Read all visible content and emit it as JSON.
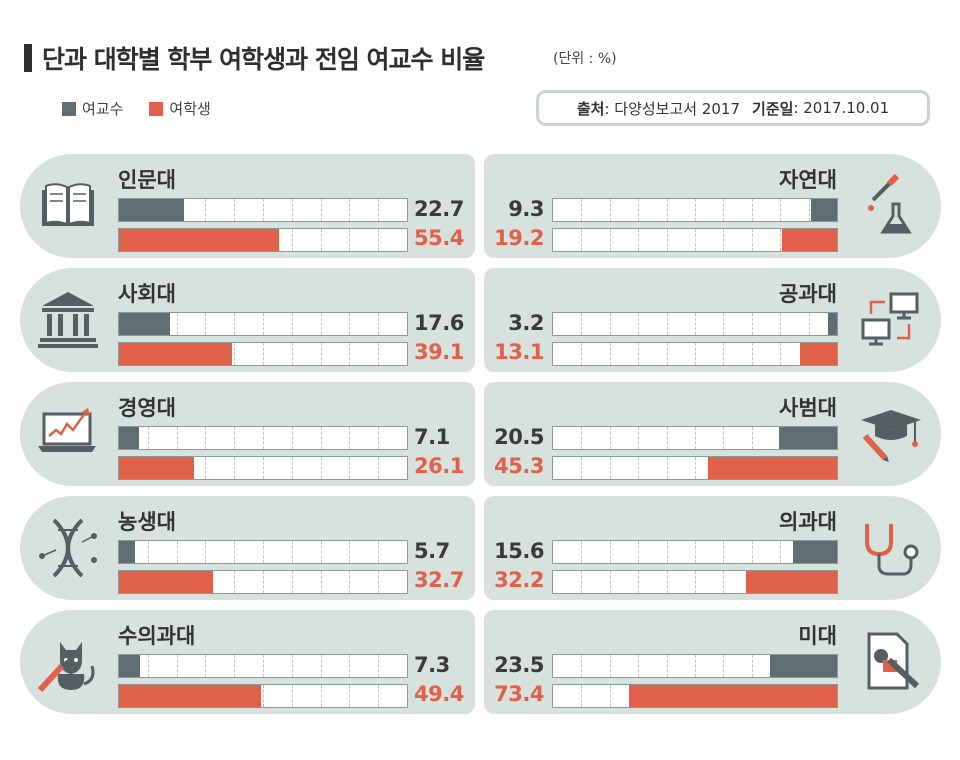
{
  "header": {
    "title": "단과 대학별 학부 여학생과 전임 여교수 비율",
    "unit": "(단위 : %)"
  },
  "legend": {
    "faculty_label": "여교수",
    "student_label": "여학생"
  },
  "source": {
    "label": "출처",
    "value": ": 다양성보고서 2017",
    "date_label": "기준일",
    "date_value": ": 2017.10.01"
  },
  "colors": {
    "faculty": "#5f6e72",
    "student": "#e0604a",
    "panel": "#d7e1dd",
    "icon": "#555f63"
  },
  "chart_data": {
    "type": "bar",
    "title": "단과 대학별 학부 여학생과 전임 여교수 비율",
    "unit": "%",
    "xlim": [
      0,
      100
    ],
    "series_names": [
      "여교수",
      "여학생"
    ],
    "categories": [
      "인문대",
      "자연대",
      "사회대",
      "공과대",
      "경영대",
      "사범대",
      "농생대",
      "의과대",
      "수의과대",
      "미대"
    ],
    "colleges": [
      {
        "name": "인문대",
        "faculty": 22.7,
        "student": 55.4,
        "side": "left",
        "icon": "book-icon"
      },
      {
        "name": "자연대",
        "faculty": 9.3,
        "student": 19.2,
        "side": "right",
        "icon": "flask-dropper-icon"
      },
      {
        "name": "사회대",
        "faculty": 17.6,
        "student": 39.1,
        "side": "left",
        "icon": "institution-building-icon"
      },
      {
        "name": "공과대",
        "faculty": 3.2,
        "student": 13.1,
        "side": "right",
        "icon": "networked-computers-icon"
      },
      {
        "name": "경영대",
        "faculty": 7.1,
        "student": 26.1,
        "side": "left",
        "icon": "laptop-chart-icon"
      },
      {
        "name": "사범대",
        "faculty": 20.5,
        "student": 45.3,
        "side": "right",
        "icon": "mortarboard-pencil-icon"
      },
      {
        "name": "농생대",
        "faculty": 5.7,
        "student": 32.7,
        "side": "left",
        "icon": "dna-icon"
      },
      {
        "name": "의과대",
        "faculty": 15.6,
        "student": 32.2,
        "side": "right",
        "icon": "stethoscope-icon"
      },
      {
        "name": "수의과대",
        "faculty": 7.3,
        "student": 49.4,
        "side": "left",
        "icon": "cat-syringe-icon"
      },
      {
        "name": "미대",
        "faculty": 23.5,
        "student": 73.4,
        "side": "right",
        "icon": "paint-brush-icon"
      }
    ]
  }
}
